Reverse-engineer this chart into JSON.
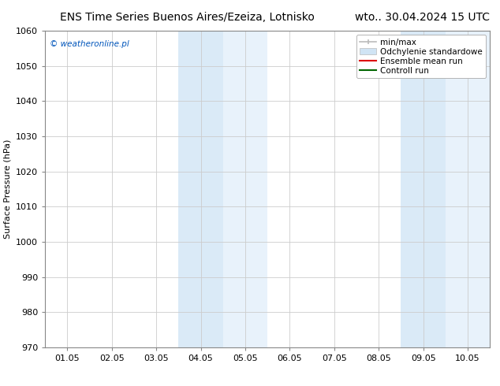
{
  "title_left": "ENS Time Series Buenos Aires/Ezeiza, Lotnisko",
  "title_right": "wto.. 30.04.2024 15 UTC",
  "ylabel": "Surface Pressure (hPa)",
  "ylim": [
    970,
    1060
  ],
  "yticks": [
    970,
    980,
    990,
    1000,
    1010,
    1020,
    1030,
    1040,
    1050,
    1060
  ],
  "xtick_labels": [
    "01.05",
    "02.05",
    "03.05",
    "04.05",
    "05.05",
    "06.05",
    "07.05",
    "08.05",
    "09.05",
    "10.05"
  ],
  "xlim": [
    0.5,
    10.5
  ],
  "watermark": "© weatheronline.pl",
  "watermark_color": "#0055bb",
  "bg_color": "#ffffff",
  "plot_bg_color": "#ffffff",
  "shaded_regions": [
    {
      "x_start": 3.5,
      "x_end": 4.5,
      "color": "#daeaf7"
    },
    {
      "x_start": 4.5,
      "x_end": 5.5,
      "color": "#e8f2fb"
    },
    {
      "x_start": 8.5,
      "x_end": 9.5,
      "color": "#daeaf7"
    },
    {
      "x_start": 9.5,
      "x_end": 10.5,
      "color": "#e8f2fb"
    }
  ],
  "legend_entries": [
    {
      "label": "min/max",
      "color": "#bbbbbb",
      "lw": 1.2,
      "ls": "-",
      "type": "line_with_caps"
    },
    {
      "label": "Odchylenie standardowe",
      "color": "#d0e4f4",
      "lw": 8,
      "ls": "-",
      "type": "band"
    },
    {
      "label": "Ensemble mean run",
      "color": "#dd0000",
      "lw": 1.5,
      "ls": "-",
      "type": "line"
    },
    {
      "label": "Controll run",
      "color": "#006600",
      "lw": 1.5,
      "ls": "-",
      "type": "line"
    }
  ],
  "grid_color": "#cccccc",
  "title_fontsize": 10,
  "axis_fontsize": 8,
  "tick_fontsize": 8,
  "legend_fontsize": 7.5
}
